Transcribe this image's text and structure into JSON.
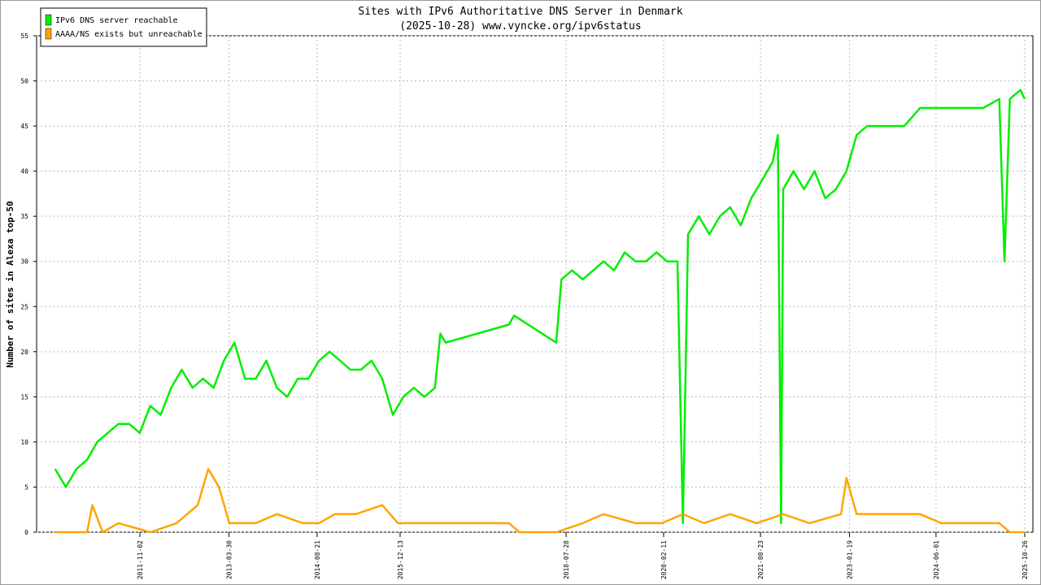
{
  "chart_data": {
    "type": "line",
    "title": "Sites with IPv6 Authoritative DNS Server in Denmark",
    "subtitle": "(2025-10-28) www.vyncke.org/ipv6status",
    "y_label": "Number of sites in Alexa top-50",
    "xlim": [
      "2010-03-16",
      "2025-12-12"
    ],
    "xticks": [
      "2011-11-02",
      "2013-03-30",
      "2014-08-21",
      "2015-12-13",
      "2018-07-28",
      "2020-02-11",
      "2021-08-23",
      "2023-01-19",
      "2024-06-01",
      "2025-10-26"
    ],
    "ylim": [
      0,
      55
    ],
    "yticks": [
      0,
      5,
      10,
      15,
      20,
      25,
      30,
      35,
      40,
      45,
      50,
      55
    ],
    "grid": true,
    "legend": "top-left",
    "series": [
      {
        "name": "IPv6 DNS server reachable",
        "color": "#00ee00",
        "x": [
          "2010-07-01",
          "2010-09-01",
          "2010-11-01",
          "2011-01-01",
          "2011-03-01",
          "2011-05-01",
          "2011-07-01",
          "2011-09-01",
          "2011-11-01",
          "2012-01-01",
          "2012-03-01",
          "2012-05-01",
          "2012-07-01",
          "2012-09-01",
          "2012-11-01",
          "2013-01-01",
          "2013-03-01",
          "2013-05-01",
          "2013-07-01",
          "2013-09-01",
          "2013-11-01",
          "2014-01-01",
          "2014-03-01",
          "2014-05-01",
          "2014-07-01",
          "2014-09-01",
          "2014-11-01",
          "2015-01-01",
          "2015-03-01",
          "2015-05-01",
          "2015-07-01",
          "2015-09-01",
          "2015-11-01",
          "2016-01-01",
          "2016-03-01",
          "2016-05-01",
          "2016-07-01",
          "2016-08-01",
          "2016-09-01",
          "2017-09-01",
          "2017-10-01",
          "2018-06-01",
          "2018-07-01",
          "2018-09-01",
          "2018-11-01",
          "2019-01-01",
          "2019-03-01",
          "2019-05-01",
          "2019-07-01",
          "2019-09-01",
          "2019-11-01",
          "2020-01-01",
          "2020-03-01",
          "2020-05-01",
          "2020-06-01",
          "2020-07-01",
          "2020-09-01",
          "2020-11-01",
          "2021-01-01",
          "2021-03-01",
          "2021-05-01",
          "2021-07-01",
          "2021-09-01",
          "2021-11-01",
          "2021-12-01",
          "2021-12-20",
          "2022-01-01",
          "2022-03-01",
          "2022-05-01",
          "2022-07-01",
          "2022-09-01",
          "2022-11-01",
          "2023-01-01",
          "2023-03-01",
          "2023-05-01",
          "2023-09-01",
          "2023-12-01",
          "2024-03-01",
          "2024-07-01",
          "2024-11-01",
          "2025-03-01",
          "2025-06-01",
          "2025-07-01",
          "2025-08-01",
          "2025-10-01",
          "2025-10-26"
        ],
        "values": [
          7,
          5,
          7,
          8,
          10,
          11,
          12,
          12,
          11,
          14,
          13,
          16,
          18,
          16,
          17,
          16,
          19,
          21,
          17,
          17,
          19,
          16,
          15,
          17,
          17,
          19,
          20,
          19,
          18,
          18,
          19,
          17,
          13,
          15,
          16,
          15,
          16,
          22,
          21,
          23,
          24,
          21,
          28,
          29,
          28,
          29,
          30,
          29,
          31,
          30,
          30,
          31,
          30,
          30,
          1,
          33,
          35,
          33,
          35,
          36,
          34,
          37,
          39,
          41,
          44,
          1,
          38,
          40,
          38,
          40,
          37,
          38,
          40,
          44,
          45,
          45,
          45,
          47,
          47,
          47,
          47,
          48,
          30,
          48,
          49,
          48
        ]
      },
      {
        "name": "AAAA/NS exists but unreachable",
        "color": "#ffa500",
        "x": [
          "2010-07-01",
          "2011-01-01",
          "2011-02-01",
          "2011-04-01",
          "2011-07-01",
          "2012-01-01",
          "2012-06-01",
          "2012-10-01",
          "2012-12-01",
          "2013-02-01",
          "2013-04-01",
          "2013-09-01",
          "2014-01-01",
          "2014-06-01",
          "2014-09-01",
          "2014-12-01",
          "2015-04-01",
          "2015-09-01",
          "2015-12-01",
          "2016-06-01",
          "2016-09-01",
          "2017-09-01",
          "2017-11-01",
          "2018-06-01",
          "2018-11-01",
          "2019-03-01",
          "2019-09-01",
          "2020-02-01",
          "2020-06-01",
          "2020-10-01",
          "2021-03-01",
          "2021-08-01",
          "2022-01-01",
          "2022-06-01",
          "2022-12-01",
          "2023-01-01",
          "2023-03-01",
          "2023-09-01",
          "2024-03-01",
          "2024-07-01",
          "2025-06-01",
          "2025-08-01",
          "2025-10-26"
        ],
        "values": [
          0,
          0,
          3,
          0,
          1,
          0,
          1,
          3,
          7,
          5,
          1,
          1,
          2,
          1,
          1,
          2,
          2,
          3,
          1,
          1,
          1,
          1,
          0,
          0,
          1,
          2,
          1,
          1,
          2,
          1,
          2,
          1,
          2,
          1,
          2,
          6,
          2,
          2,
          2,
          1,
          1,
          0,
          0
        ]
      }
    ]
  }
}
